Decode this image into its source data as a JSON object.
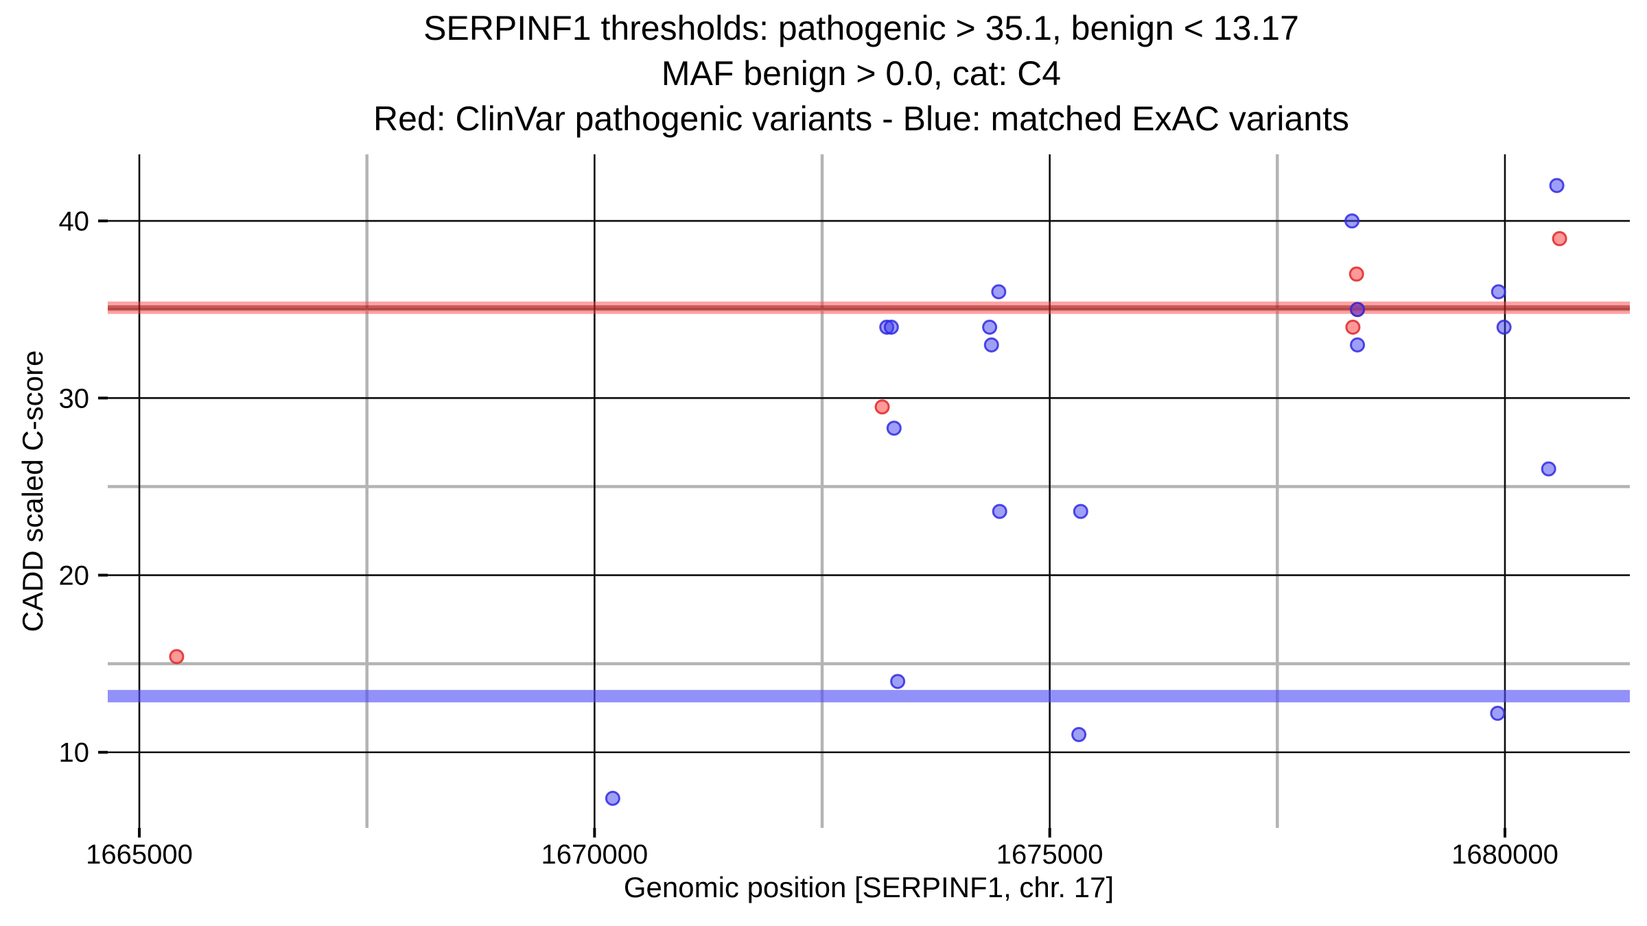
{
  "title": {
    "line1": "SERPINF1 thresholds: pathogenic > 35.1, benign < 13.17",
    "line2": "MAF benign > 0.0, cat: C4",
    "line3": "Red: ClinVar pathogenic variants - Blue: matched ExAC variants"
  },
  "chart_data": {
    "type": "scatter",
    "title": "SERPINF1 thresholds: pathogenic > 35.1, benign < 13.17\nMAF benign > 0.0, cat: C4\nRed: ClinVar pathogenic variants - Blue: matched ExAC variants",
    "xlabel": "Genomic position [SERPINF1, chr. 17]",
    "ylabel": "CADD scaled C-score",
    "xlim": [
      1664653,
      1681372
    ],
    "ylim": [
      5.73,
      43.76
    ],
    "x_ticks": [
      1665000,
      1670000,
      1675000,
      1680000
    ],
    "x_minor_ticks": [
      1667500,
      1672500,
      1677500
    ],
    "y_ticks": [
      10,
      20,
      30,
      40
    ],
    "y_minor_ticks": [
      15,
      25,
      35
    ],
    "grid": "on",
    "legend_position": "none",
    "thresholds": {
      "pathogenic": {
        "value": 35.1,
        "band_halfwidth": 0.35,
        "band_color": "rgba(250,70,70,0.50)",
        "core_color": "rgba(139,0,0,0.45)"
      },
      "benign": {
        "value": 13.17,
        "band_halfwidth": 0.35,
        "band_color": "rgba(77,77,245,0.62)",
        "core_color": "none"
      }
    },
    "series": [
      {
        "name": "ClinVar pathogenic variants",
        "color_name": "red",
        "fill": "rgba(255,51,51,0.50)",
        "stroke": "rgba(226,48,48,0.90)",
        "points": [
          [
            1665410,
            15.4
          ],
          [
            1673160,
            29.5
          ],
          [
            1678330,
            34.0
          ],
          [
            1678370,
            37.0
          ],
          [
            1678380,
            35.0
          ],
          [
            1680600,
            39.0
          ]
        ]
      },
      {
        "name": "matched ExAC variants",
        "color_name": "blue",
        "fill": "rgba(64,64,240,0.50)",
        "stroke": "rgba(47,42,226,0.85)",
        "points": [
          [
            1670200,
            7.4
          ],
          [
            1673210,
            34.0
          ],
          [
            1673260,
            34.0
          ],
          [
            1673290,
            28.3
          ],
          [
            1673330,
            14.0
          ],
          [
            1674340,
            34.0
          ],
          [
            1674360,
            33.0
          ],
          [
            1674440,
            36.0
          ],
          [
            1674450,
            23.6
          ],
          [
            1675320,
            11.0
          ],
          [
            1675340,
            23.6
          ],
          [
            1678320,
            40.0
          ],
          [
            1678380,
            35.0
          ],
          [
            1678380,
            33.0
          ],
          [
            1679920,
            12.2
          ],
          [
            1679930,
            36.0
          ],
          [
            1679990,
            34.0
          ],
          [
            1680480,
            26.0
          ],
          [
            1680570,
            42.0
          ]
        ]
      }
    ],
    "colors": {
      "major_grid": "#0d0d0d",
      "minor_grid": "#b4b4b4",
      "axis_text": "#000000",
      "tick_mark": "#000000",
      "background": "#ffffff"
    }
  }
}
